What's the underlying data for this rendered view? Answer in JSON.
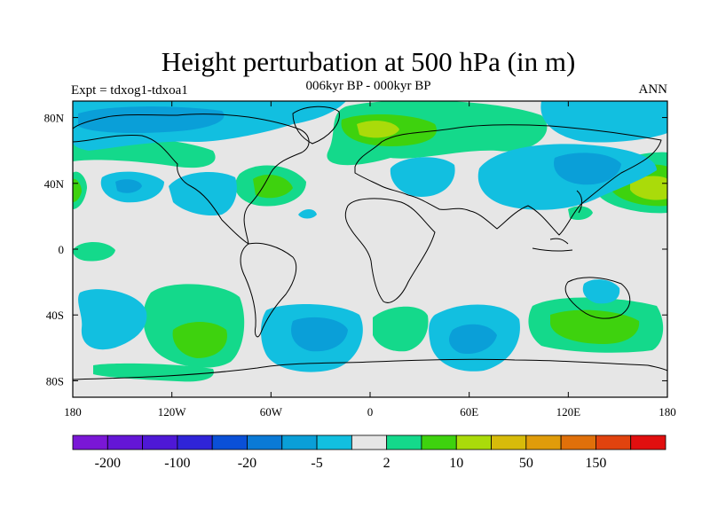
{
  "title": "Height perturbation at 500 hPa (in m)",
  "subtitle": "006kyr BP - 000kyr BP",
  "left_label": "Expt = tdxog1-tdxoa1",
  "right_label": "ANN",
  "map": {
    "projection": "cylindrical-equidistant",
    "lon_range": [
      -180,
      180
    ],
    "lat_range": [
      -90,
      90
    ],
    "background_color": "#e6e6e6",
    "coastline_color": "#000000",
    "lat_ticks": [
      {
        "value": 80,
        "label": "80N"
      },
      {
        "value": 40,
        "label": "40N"
      },
      {
        "value": 0,
        "label": "0"
      },
      {
        "value": -40,
        "label": "40S"
      },
      {
        "value": -80,
        "label": "80S"
      }
    ],
    "lon_ticks": [
      {
        "value": -180,
        "label": "180"
      },
      {
        "value": -120,
        "label": "120W"
      },
      {
        "value": -60,
        "label": "60W"
      },
      {
        "value": 0,
        "label": "0"
      },
      {
        "value": 60,
        "label": "60E"
      },
      {
        "value": 120,
        "label": "120E"
      },
      {
        "value": 180,
        "label": "180"
      }
    ]
  },
  "colorbar": {
    "colors": [
      "#7a17d6",
      "#6416d6",
      "#4e18d6",
      "#2f24d8",
      "#0a50d7",
      "#0a7ad6",
      "#0a9fd8",
      "#12bfe0",
      "#e6e6e6",
      "#14d98b",
      "#3ed20e",
      "#aadb0a",
      "#d7bb0a",
      "#e09c0a",
      "#e0700a",
      "#e1430e",
      "#e10f0f"
    ],
    "labels": [
      {
        "after_box": 1,
        "text": "-200"
      },
      {
        "after_box": 3,
        "text": "-100"
      },
      {
        "after_box": 5,
        "text": "-20"
      },
      {
        "after_box": 7,
        "text": "-5"
      },
      {
        "after_box": 9,
        "text": "2"
      },
      {
        "after_box": 11,
        "text": "10"
      },
      {
        "after_box": 13,
        "text": "50"
      },
      {
        "after_box": 15,
        "text": "150"
      }
    ]
  }
}
